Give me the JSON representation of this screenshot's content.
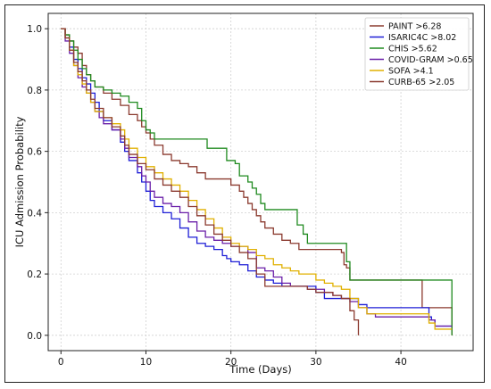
{
  "chart_data": {
    "type": "line",
    "step": true,
    "xlabel": "Time (Days)",
    "ylabel": "ICU Admission Probability",
    "xlim": [
      -1.5,
      48.5
    ],
    "ylim": [
      -0.05,
      1.05
    ],
    "x_ticks": [
      0,
      10,
      20,
      30,
      40
    ],
    "y_ticks": [
      0.0,
      0.2,
      0.4,
      0.6,
      0.8,
      1.0
    ],
    "x_tick_labels": [
      "0",
      "10",
      "20",
      "30",
      "40"
    ],
    "y_tick_labels": [
      "0.0",
      "0.2",
      "0.4",
      "0.6",
      "0.8",
      "1.0"
    ],
    "grid": true,
    "legend_position": "top-right",
    "series": [
      {
        "name": "PAINT >6.28",
        "color": "#8B3A2F",
        "points": [
          [
            0,
            1.0
          ],
          [
            0.5,
            0.98
          ],
          [
            1,
            0.96
          ],
          [
            1.5,
            0.94
          ],
          [
            2,
            0.92
          ],
          [
            2.5,
            0.88
          ],
          [
            3,
            0.85
          ],
          [
            3.5,
            0.83
          ],
          [
            4,
            0.81
          ],
          [
            5,
            0.79
          ],
          [
            6,
            0.77
          ],
          [
            7,
            0.75
          ],
          [
            8,
            0.72
          ],
          [
            9,
            0.7
          ],
          [
            9.5,
            0.68
          ],
          [
            10,
            0.66
          ],
          [
            10.5,
            0.64
          ],
          [
            11,
            0.62
          ],
          [
            12,
            0.59
          ],
          [
            13,
            0.57
          ],
          [
            14,
            0.56
          ],
          [
            15,
            0.55
          ],
          [
            16,
            0.53
          ],
          [
            17,
            0.51
          ],
          [
            18,
            0.51
          ],
          [
            19,
            0.51
          ],
          [
            20,
            0.49
          ],
          [
            21,
            0.47
          ],
          [
            21.5,
            0.45
          ],
          [
            22,
            0.43
          ],
          [
            22.5,
            0.41
          ],
          [
            23,
            0.39
          ],
          [
            23.5,
            0.37
          ],
          [
            24,
            0.35
          ],
          [
            25,
            0.33
          ],
          [
            26,
            0.31
          ],
          [
            27,
            0.3
          ],
          [
            28,
            0.28
          ],
          [
            30,
            0.28
          ],
          [
            33,
            0.27
          ],
          [
            33.3,
            0.23
          ],
          [
            33.6,
            0.22
          ],
          [
            34,
            0.18
          ],
          [
            42,
            0.18
          ],
          [
            42.5,
            0.09
          ],
          [
            46,
            0.09
          ],
          [
            46,
            0.0
          ]
        ]
      },
      {
        "name": "ISARIC4C >8.02",
        "color": "#1E1ED6",
        "points": [
          [
            0,
            1.0
          ],
          [
            0.5,
            0.97
          ],
          [
            1,
            0.94
          ],
          [
            1.5,
            0.9
          ],
          [
            2,
            0.87
          ],
          [
            2.5,
            0.84
          ],
          [
            3,
            0.82
          ],
          [
            3.5,
            0.79
          ],
          [
            4,
            0.76
          ],
          [
            4.5,
            0.73
          ],
          [
            5,
            0.7
          ],
          [
            6,
            0.67
          ],
          [
            7,
            0.63
          ],
          [
            7.5,
            0.6
          ],
          [
            8,
            0.57
          ],
          [
            9,
            0.53
          ],
          [
            9.5,
            0.5
          ],
          [
            10,
            0.47
          ],
          [
            10.5,
            0.44
          ],
          [
            11,
            0.42
          ],
          [
            12,
            0.4
          ],
          [
            13,
            0.38
          ],
          [
            14,
            0.35
          ],
          [
            15,
            0.32
          ],
          [
            16,
            0.3
          ],
          [
            17,
            0.29
          ],
          [
            18,
            0.28
          ],
          [
            19,
            0.26
          ],
          [
            19.5,
            0.25
          ],
          [
            20,
            0.24
          ],
          [
            21,
            0.23
          ],
          [
            22,
            0.21
          ],
          [
            23,
            0.19
          ],
          [
            24,
            0.18
          ],
          [
            25,
            0.17
          ],
          [
            26,
            0.16
          ],
          [
            28,
            0.16
          ],
          [
            30,
            0.14
          ],
          [
            31,
            0.12
          ],
          [
            33,
            0.12
          ],
          [
            35,
            0.1
          ],
          [
            36,
            0.09
          ],
          [
            43,
            0.09
          ],
          [
            43.3,
            0.06
          ],
          [
            43.6,
            0.05
          ],
          [
            44,
            0.03
          ],
          [
            46,
            0.03
          ]
        ]
      },
      {
        "name": "CHIS >5.62",
        "color": "#1F8A1F",
        "points": [
          [
            0,
            1.0
          ],
          [
            0.5,
            0.98
          ],
          [
            1,
            0.96
          ],
          [
            1.5,
            0.93
          ],
          [
            2,
            0.9
          ],
          [
            2.5,
            0.87
          ],
          [
            3,
            0.85
          ],
          [
            3.5,
            0.83
          ],
          [
            4,
            0.81
          ],
          [
            5,
            0.8
          ],
          [
            6,
            0.79
          ],
          [
            7,
            0.78
          ],
          [
            8,
            0.76
          ],
          [
            9,
            0.74
          ],
          [
            9.5,
            0.7
          ],
          [
            10,
            0.67
          ],
          [
            10.5,
            0.66
          ],
          [
            11,
            0.64
          ],
          [
            17,
            0.64
          ],
          [
            17.2,
            0.61
          ],
          [
            19,
            0.61
          ],
          [
            19.5,
            0.57
          ],
          [
            20.5,
            0.56
          ],
          [
            21,
            0.52
          ],
          [
            22,
            0.5
          ],
          [
            22.5,
            0.48
          ],
          [
            23,
            0.46
          ],
          [
            23.5,
            0.43
          ],
          [
            24,
            0.41
          ],
          [
            27.5,
            0.41
          ],
          [
            27.8,
            0.36
          ],
          [
            28.5,
            0.33
          ],
          [
            29,
            0.3
          ],
          [
            33.3,
            0.3
          ],
          [
            33.6,
            0.24
          ],
          [
            34,
            0.18
          ],
          [
            46,
            0.18
          ],
          [
            46,
            0.0
          ]
        ]
      },
      {
        "name": "COVID-GRAM >0.65",
        "color": "#6A1FA8",
        "points": [
          [
            0,
            1.0
          ],
          [
            0.5,
            0.96
          ],
          [
            1,
            0.92
          ],
          [
            1.5,
            0.88
          ],
          [
            2,
            0.84
          ],
          [
            2.5,
            0.81
          ],
          [
            3,
            0.79
          ],
          [
            3.5,
            0.76
          ],
          [
            4,
            0.73
          ],
          [
            4.5,
            0.71
          ],
          [
            5,
            0.69
          ],
          [
            6,
            0.67
          ],
          [
            7,
            0.64
          ],
          [
            7.5,
            0.61
          ],
          [
            8,
            0.58
          ],
          [
            9,
            0.55
          ],
          [
            9.5,
            0.52
          ],
          [
            10,
            0.5
          ],
          [
            10.5,
            0.47
          ],
          [
            11,
            0.45
          ],
          [
            12,
            0.43
          ],
          [
            13,
            0.42
          ],
          [
            14,
            0.4
          ],
          [
            15,
            0.37
          ],
          [
            16,
            0.34
          ],
          [
            17,
            0.32
          ],
          [
            18,
            0.31
          ],
          [
            19,
            0.3
          ],
          [
            20,
            0.29
          ],
          [
            21,
            0.29
          ],
          [
            22,
            0.27
          ],
          [
            23,
            0.22
          ],
          [
            24,
            0.21
          ],
          [
            25,
            0.19
          ],
          [
            26,
            0.17
          ],
          [
            27,
            0.16
          ],
          [
            28,
            0.16
          ],
          [
            29,
            0.15
          ],
          [
            30,
            0.15
          ],
          [
            31,
            0.14
          ],
          [
            32,
            0.13
          ],
          [
            33,
            0.12
          ],
          [
            34,
            0.11
          ],
          [
            35,
            0.09
          ],
          [
            36,
            0.07
          ],
          [
            37,
            0.06
          ],
          [
            43,
            0.06
          ],
          [
            43.3,
            0.05
          ],
          [
            44,
            0.03
          ],
          [
            46,
            0.03
          ]
        ]
      },
      {
        "name": "SOFA >4.1",
        "color": "#E0B000",
        "points": [
          [
            0,
            1.0
          ],
          [
            0.5,
            0.97
          ],
          [
            1,
            0.93
          ],
          [
            1.5,
            0.88
          ],
          [
            2,
            0.85
          ],
          [
            2.5,
            0.82
          ],
          [
            3,
            0.79
          ],
          [
            3.5,
            0.76
          ],
          [
            4,
            0.73
          ],
          [
            5,
            0.71
          ],
          [
            6,
            0.69
          ],
          [
            7,
            0.67
          ],
          [
            7.5,
            0.64
          ],
          [
            8,
            0.61
          ],
          [
            9,
            0.58
          ],
          [
            10,
            0.55
          ],
          [
            11,
            0.53
          ],
          [
            12,
            0.51
          ],
          [
            13,
            0.49
          ],
          [
            14,
            0.47
          ],
          [
            15,
            0.44
          ],
          [
            16,
            0.41
          ],
          [
            17,
            0.38
          ],
          [
            18,
            0.35
          ],
          [
            19,
            0.32
          ],
          [
            20,
            0.3
          ],
          [
            21,
            0.29
          ],
          [
            22,
            0.28
          ],
          [
            23,
            0.26
          ],
          [
            24,
            0.25
          ],
          [
            25,
            0.23
          ],
          [
            26,
            0.22
          ],
          [
            27,
            0.21
          ],
          [
            28,
            0.2
          ],
          [
            30,
            0.18
          ],
          [
            31,
            0.17
          ],
          [
            32,
            0.16
          ],
          [
            33,
            0.15
          ],
          [
            34,
            0.12
          ],
          [
            35,
            0.09
          ],
          [
            36,
            0.07
          ],
          [
            43,
            0.07
          ],
          [
            43.3,
            0.04
          ],
          [
            44,
            0.02
          ],
          [
            46,
            0.02
          ]
        ]
      },
      {
        "name": "CURB-65 >2.05",
        "color": "#8B3A2F",
        "points": [
          [
            0,
            1.0
          ],
          [
            0.5,
            0.97
          ],
          [
            1,
            0.93
          ],
          [
            1.5,
            0.89
          ],
          [
            2,
            0.86
          ],
          [
            2.5,
            0.83
          ],
          [
            3,
            0.8
          ],
          [
            3.5,
            0.77
          ],
          [
            4,
            0.74
          ],
          [
            5,
            0.71
          ],
          [
            6,
            0.68
          ],
          [
            7,
            0.65
          ],
          [
            7.5,
            0.62
          ],
          [
            8,
            0.59
          ],
          [
            9,
            0.56
          ],
          [
            10,
            0.54
          ],
          [
            11,
            0.51
          ],
          [
            12,
            0.49
          ],
          [
            13,
            0.47
          ],
          [
            14,
            0.45
          ],
          [
            15,
            0.42
          ],
          [
            16,
            0.39
          ],
          [
            17,
            0.36
          ],
          [
            18,
            0.33
          ],
          [
            19,
            0.31
          ],
          [
            20,
            0.29
          ],
          [
            21,
            0.27
          ],
          [
            22,
            0.25
          ],
          [
            23,
            0.2
          ],
          [
            24,
            0.16
          ],
          [
            28,
            0.16
          ],
          [
            29,
            0.15
          ],
          [
            30,
            0.14
          ],
          [
            32,
            0.13
          ],
          [
            33,
            0.12
          ],
          [
            34,
            0.08
          ],
          [
            34.5,
            0.05
          ],
          [
            35,
            0.0
          ]
        ]
      }
    ]
  }
}
